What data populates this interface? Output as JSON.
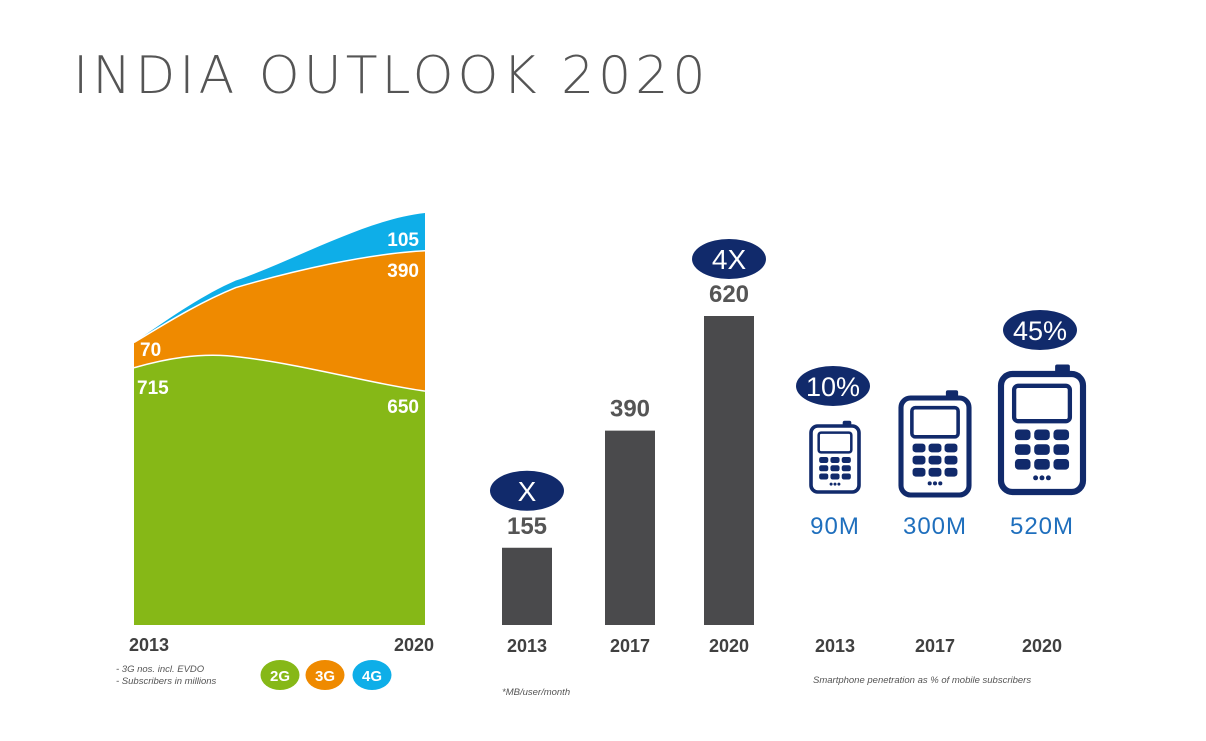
{
  "title": "INDIA OUTLOOK 2020",
  "colors": {
    "g2": "#86b817",
    "g3": "#ef8a00",
    "g4": "#0eaee8",
    "bar": "#4a4a4c",
    "navy": "#112a6b",
    "blue_text": "#1f6fbd",
    "axis_text": "#404040",
    "footnote": "#555555"
  },
  "chart_data": [
    {
      "type": "area",
      "stacked": true,
      "x": [
        "2013",
        "2020"
      ],
      "series": [
        {
          "name": "2G",
          "values": [
            715,
            650
          ]
        },
        {
          "name": "3G",
          "values": [
            70,
            390
          ]
        },
        {
          "name": "4G",
          "values": [
            0,
            105
          ]
        }
      ],
      "legend": [
        "2G",
        "3G",
        "4G"
      ],
      "footnotes": [
        "3G nos. incl. EVDO",
        "Subscribers in millions"
      ]
    },
    {
      "type": "bar",
      "categories": [
        "2013",
        "2017",
        "2020"
      ],
      "values": [
        155,
        390,
        620
      ],
      "ylim": [
        0,
        620
      ],
      "annotations": [
        "X",
        "",
        "4X"
      ],
      "footnote": "*MB/user/month"
    },
    {
      "type": "table",
      "categories": [
        "2013",
        "2017",
        "2020"
      ],
      "subscribers": [
        "90M",
        "300M",
        "520M"
      ],
      "penetration": [
        "10%",
        "",
        "45%"
      ],
      "footnote": "Smartphone penetration as % of mobile subscribers"
    }
  ]
}
